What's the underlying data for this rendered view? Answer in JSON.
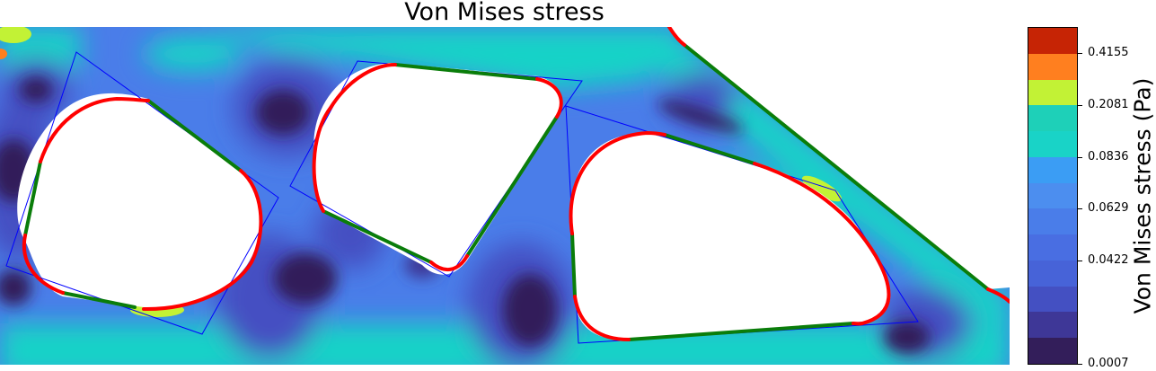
{
  "chart_data": {
    "type": "heatmap",
    "title": "Von Mises stress",
    "colorbar": {
      "label": "Von Mises stress (Pa)",
      "ticks": [
        "0.0007",
        "0.0422",
        "0.0629",
        "0.0836",
        "0.2081",
        "0.4155"
      ],
      "levels": 13,
      "colors": [
        "#331e5a",
        "#3e3797",
        "#4450c2",
        "#4763d8",
        "#496ee2",
        "#4a7de9",
        "#4c8eef",
        "#3b9df4",
        "#19d3c7",
        "#1ed0b8",
        "#c2f235",
        "#ff7f1f",
        "#c62405"
      ]
    },
    "overlay": {
      "curved_boundary_color": "#ff0000",
      "straight_boundary_color": "#0a7d0a",
      "bounding_box_color": "#0000ff"
    }
  }
}
